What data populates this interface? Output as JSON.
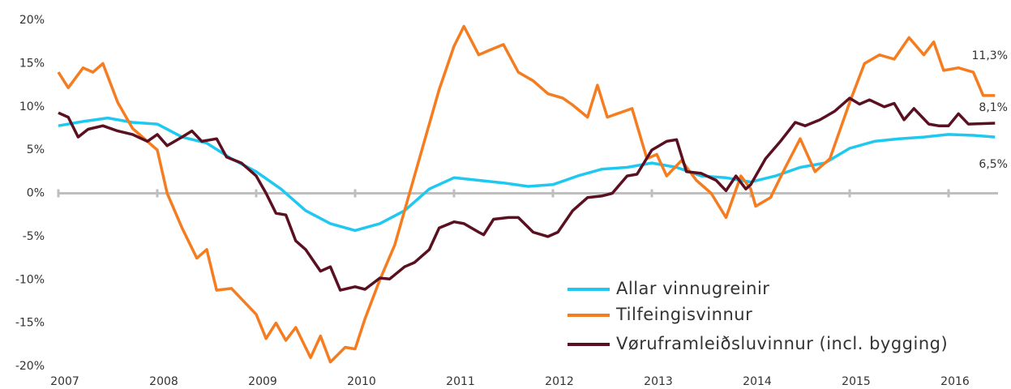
{
  "chart_data": {
    "type": "line",
    "xlim": [
      2007,
      2016.5
    ],
    "xticks": [
      2007,
      2008,
      2009,
      2010,
      2011,
      2012,
      2013,
      2014,
      2015,
      2016
    ],
    "ylim": [
      -20,
      20
    ],
    "yticks": [
      {
        "value": -20,
        "label": "-20%"
      },
      {
        "value": -15,
        "label": "-15%"
      },
      {
        "value": -10,
        "label": "-10%"
      },
      {
        "value": -5,
        "label": "-5%"
      },
      {
        "value": 0,
        "label": "0%"
      },
      {
        "value": 5,
        "label": "5%"
      },
      {
        "value": 10,
        "label": "10%"
      },
      {
        "value": 15,
        "label": "15%"
      },
      {
        "value": 20,
        "label": "20%"
      }
    ],
    "legend": "lower right",
    "series": [
      {
        "name": "Allar vinnugreinir",
        "color": "#1ec8f0",
        "x": [
          2007,
          2007.25,
          2007.5,
          2007.75,
          2008,
          2008.25,
          2008.5,
          2008.75,
          2009,
          2009.25,
          2009.5,
          2009.75,
          2010,
          2010.25,
          2010.5,
          2010.75,
          2011,
          2011.25,
          2011.5,
          2011.75,
          2012,
          2012.25,
          2012.5,
          2012.75,
          2013,
          2013.25,
          2013.5,
          2013.75,
          2014,
          2014.25,
          2014.5,
          2014.75,
          2015,
          2015.25,
          2015.5,
          2015.75,
          2016,
          2016.25,
          2016.47
        ],
        "values": [
          7.8,
          8.3,
          8.7,
          8.2,
          8.0,
          6.5,
          5.8,
          4.0,
          2.5,
          0.5,
          -2.0,
          -3.5,
          -4.3,
          -3.5,
          -2.0,
          0.5,
          1.8,
          1.5,
          1.2,
          0.8,
          1.0,
          2.0,
          2.8,
          3.0,
          3.5,
          3.0,
          2.0,
          1.8,
          1.3,
          2.0,
          3.0,
          3.5,
          5.2,
          6.0,
          6.3,
          6.5,
          6.8,
          6.7,
          6.5
        ],
        "last_label": "6,5%"
      },
      {
        "name": "Tilfeingisvinnur",
        "color": "#f57c1f",
        "x": [
          2007,
          2007.1,
          2007.25,
          2007.35,
          2007.45,
          2007.6,
          2007.75,
          2008,
          2008.1,
          2008.25,
          2008.4,
          2008.5,
          2008.6,
          2008.75,
          2009,
          2009.1,
          2009.2,
          2009.3,
          2009.4,
          2009.55,
          2009.65,
          2009.75,
          2009.9,
          2010,
          2010.1,
          2010.25,
          2010.4,
          2010.55,
          2010.7,
          2010.85,
          2011,
          2011.1,
          2011.25,
          2011.35,
          2011.5,
          2011.65,
          2011.8,
          2011.95,
          2012.1,
          2012.2,
          2012.35,
          2012.45,
          2012.55,
          2012.65,
          2012.8,
          2012.95,
          2013.05,
          2013.15,
          2013.3,
          2013.45,
          2013.6,
          2013.75,
          2013.9,
          2014,
          2014.05,
          2014.2,
          2014.35,
          2014.5,
          2014.65,
          2014.8,
          2015,
          2015.15,
          2015.3,
          2015.45,
          2015.6,
          2015.75,
          2015.85,
          2015.95,
          2016.1,
          2016.25,
          2016.35,
          2016.47
        ],
        "values": [
          14,
          12.2,
          14.5,
          14.0,
          15.0,
          10.5,
          7.5,
          5.0,
          0,
          -4,
          -7.5,
          -6.5,
          -11.2,
          -11,
          -14,
          -16.8,
          -15,
          -17,
          -15.5,
          -19,
          -16.5,
          -19.5,
          -17.8,
          -18,
          -14.5,
          -10,
          -6,
          0,
          6,
          12,
          17,
          19.3,
          16,
          16.5,
          17.2,
          14,
          13,
          11.5,
          11,
          10.2,
          8.8,
          12.5,
          8.8,
          9.2,
          9.8,
          4,
          4.5,
          2,
          3.8,
          1.5,
          0,
          -2.8,
          2,
          0.5,
          -1.5,
          -0.5,
          3,
          6.3,
          2.5,
          4,
          10.5,
          15,
          16,
          15.5,
          18,
          16,
          17.5,
          14.2,
          14.5,
          14,
          11.3,
          11.3
        ],
        "last_label": "11,3%"
      },
      {
        "name": "Vøruframleiðsluvinnur (incl. bygging)",
        "color": "#5a1020",
        "x": [
          2007,
          2007.1,
          2007.2,
          2007.3,
          2007.45,
          2007.6,
          2007.75,
          2007.9,
          2008,
          2008.1,
          2008.25,
          2008.35,
          2008.45,
          2008.6,
          2008.7,
          2008.85,
          2009,
          2009.1,
          2009.2,
          2009.3,
          2009.4,
          2009.5,
          2009.65,
          2009.75,
          2009.85,
          2010,
          2010.1,
          2010.25,
          2010.35,
          2010.5,
          2010.6,
          2010.75,
          2010.85,
          2011,
          2011.1,
          2011.25,
          2011.3,
          2011.4,
          2011.55,
          2011.65,
          2011.8,
          2011.95,
          2012.05,
          2012.2,
          2012.35,
          2012.5,
          2012.6,
          2012.75,
          2012.85,
          2013,
          2013.15,
          2013.25,
          2013.35,
          2013.5,
          2013.65,
          2013.75,
          2013.85,
          2013.95,
          2014,
          2014.15,
          2014.3,
          2014.45,
          2014.55,
          2014.7,
          2014.85,
          2015,
          2015.1,
          2015.2,
          2015.35,
          2015.45,
          2015.55,
          2015.65,
          2015.8,
          2015.9,
          2016,
          2016.1,
          2016.2,
          2016.47
        ],
        "values": [
          9.3,
          8.8,
          6.5,
          7.4,
          7.8,
          7.2,
          6.8,
          6.0,
          6.8,
          5.5,
          6.5,
          7.2,
          6.0,
          6.3,
          4.2,
          3.5,
          2.0,
          0,
          -2.3,
          -2.5,
          -5.5,
          -6.5,
          -9,
          -8.5,
          -11.2,
          -10.8,
          -11.1,
          -9.8,
          -9.9,
          -8.5,
          -8,
          -6.5,
          -4,
          -3.3,
          -3.5,
          -4.5,
          -4.8,
          -3,
          -2.8,
          -2.8,
          -4.5,
          -5,
          -4.5,
          -2,
          -0.5,
          -0.3,
          0,
          2,
          2.2,
          5,
          6,
          6.2,
          2.5,
          2.3,
          1.5,
          0.3,
          2,
          0.5,
          1.0,
          4,
          6,
          8.2,
          7.8,
          8.5,
          9.5,
          11,
          10.3,
          10.8,
          10,
          10.4,
          8.5,
          9.8,
          8,
          7.8,
          7.8,
          9.2,
          8,
          8.1
        ],
        "last_label": "8,1%"
      }
    ]
  }
}
